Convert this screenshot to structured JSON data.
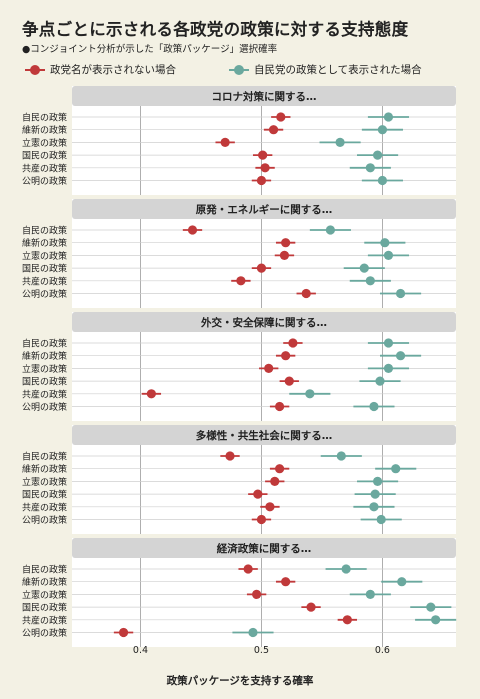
{
  "header": {
    "title": "争点ごとに示される各政党の政策に対する支持態度",
    "subtitle": "●コンジョイント分析が示した「政策パッケージ」選択確率"
  },
  "legend": {
    "series_a": "政党名が表示されない場合",
    "series_b": "自民党の政策として表示された場合"
  },
  "colors": {
    "series_a": "#c0393a",
    "series_b": "#6aa89e",
    "panel_bg": "#ffffff",
    "header_bg": "#d4d4d4",
    "page_bg": "#f3f1e4"
  },
  "chart_data": {
    "type": "scatter",
    "title": "争点ごとに示される各政党の政策に対する支持態度",
    "subtitle": "●コンジョイント分析が示した「政策パッケージ」選択確率",
    "xlabel": "政策パッケージを支持する確率",
    "xlim": [
      0.35,
      0.66
    ],
    "xticks": [
      0.4,
      0.5,
      0.6
    ],
    "xtick_labels": [
      "0.4",
      "0.5",
      "0.6"
    ],
    "grid": "vertical",
    "legend_position": "top",
    "series_names": [
      "政党名が表示されない場合",
      "自民党の政策として表示された場合"
    ],
    "panels": [
      {
        "title": "コロナ対策に関する…",
        "rows": [
          {
            "label": "自民の政策",
            "a": [
              0.516,
              0.508,
              0.524
            ],
            "b": [
              0.605,
              0.588,
              0.622
            ]
          },
          {
            "label": "維新の政策",
            "a": [
              0.51,
              0.502,
              0.518
            ],
            "b": [
              0.6,
              0.583,
              0.617
            ]
          },
          {
            "label": "立憲の政策",
            "a": [
              0.47,
              0.462,
              0.478
            ],
            "b": [
              0.565,
              0.548,
              0.582
            ]
          },
          {
            "label": "国民の政策",
            "a": [
              0.501,
              0.493,
              0.509
            ],
            "b": [
              0.596,
              0.579,
              0.613
            ]
          },
          {
            "label": "共産の政策",
            "a": [
              0.503,
              0.495,
              0.511
            ],
            "b": [
              0.59,
              0.573,
              0.607
            ]
          },
          {
            "label": "公明の政策",
            "a": [
              0.5,
              0.492,
              0.508
            ],
            "b": [
              0.6,
              0.583,
              0.617
            ]
          }
        ]
      },
      {
        "title": "原発・エネルギーに関する…",
        "rows": [
          {
            "label": "自民の政策",
            "a": [
              0.443,
              0.435,
              0.451
            ],
            "b": [
              0.557,
              0.54,
              0.574
            ]
          },
          {
            "label": "維新の政策",
            "a": [
              0.52,
              0.512,
              0.528
            ],
            "b": [
              0.602,
              0.585,
              0.619
            ]
          },
          {
            "label": "立憲の政策",
            "a": [
              0.519,
              0.511,
              0.527
            ],
            "b": [
              0.605,
              0.588,
              0.622
            ]
          },
          {
            "label": "国民の政策",
            "a": [
              0.5,
              0.492,
              0.508
            ],
            "b": [
              0.585,
              0.568,
              0.602
            ]
          },
          {
            "label": "共産の政策",
            "a": [
              0.483,
              0.475,
              0.491
            ],
            "b": [
              0.59,
              0.573,
              0.607
            ]
          },
          {
            "label": "公明の政策",
            "a": [
              0.537,
              0.529,
              0.545
            ],
            "b": [
              0.615,
              0.598,
              0.632
            ]
          }
        ]
      },
      {
        "title": "外交・安全保障に関する…",
        "rows": [
          {
            "label": "自民の政策",
            "a": [
              0.526,
              0.518,
              0.534
            ],
            "b": [
              0.605,
              0.588,
              0.622
            ]
          },
          {
            "label": "維新の政策",
            "a": [
              0.52,
              0.512,
              0.528
            ],
            "b": [
              0.615,
              0.598,
              0.632
            ]
          },
          {
            "label": "立憲の政策",
            "a": [
              0.506,
              0.498,
              0.514
            ],
            "b": [
              0.605,
              0.588,
              0.622
            ]
          },
          {
            "label": "国民の政策",
            "a": [
              0.523,
              0.515,
              0.531
            ],
            "b": [
              0.598,
              0.581,
              0.615
            ]
          },
          {
            "label": "共産の政策",
            "a": [
              0.409,
              0.401,
              0.417
            ],
            "b": [
              0.54,
              0.523,
              0.557
            ]
          },
          {
            "label": "公明の政策",
            "a": [
              0.515,
              0.507,
              0.523
            ],
            "b": [
              0.593,
              0.576,
              0.61
            ]
          }
        ]
      },
      {
        "title": "多様性・共生社会に関する…",
        "rows": [
          {
            "label": "自民の政策",
            "a": [
              0.474,
              0.466,
              0.482
            ],
            "b": [
              0.566,
              0.549,
              0.583
            ]
          },
          {
            "label": "維新の政策",
            "a": [
              0.515,
              0.507,
              0.523
            ],
            "b": [
              0.611,
              0.594,
              0.628
            ]
          },
          {
            "label": "立憲の政策",
            "a": [
              0.511,
              0.503,
              0.519
            ],
            "b": [
              0.596,
              0.579,
              0.613
            ]
          },
          {
            "label": "国民の政策",
            "a": [
              0.497,
              0.489,
              0.505
            ],
            "b": [
              0.594,
              0.577,
              0.611
            ]
          },
          {
            "label": "共産の政策",
            "a": [
              0.507,
              0.499,
              0.515
            ],
            "b": [
              0.593,
              0.576,
              0.61
            ]
          },
          {
            "label": "公明の政策",
            "a": [
              0.5,
              0.492,
              0.508
            ],
            "b": [
              0.599,
              0.582,
              0.616
            ]
          }
        ]
      },
      {
        "title": "経済政策に関する…",
        "rows": [
          {
            "label": "自民の政策",
            "a": [
              0.489,
              0.481,
              0.497
            ],
            "b": [
              0.57,
              0.553,
              0.587
            ]
          },
          {
            "label": "維新の政策",
            "a": [
              0.52,
              0.512,
              0.528
            ],
            "b": [
              0.616,
              0.599,
              0.633
            ]
          },
          {
            "label": "立憲の政策",
            "a": [
              0.496,
              0.488,
              0.504
            ],
            "b": [
              0.59,
              0.573,
              0.607
            ]
          },
          {
            "label": "国民の政策",
            "a": [
              0.541,
              0.533,
              0.549
            ],
            "b": [
              0.64,
              0.623,
              0.657
            ]
          },
          {
            "label": "共産の政策",
            "a": [
              0.571,
              0.563,
              0.579
            ],
            "b": [
              0.644,
              0.627,
              0.661
            ]
          },
          {
            "label": "公明の政策",
            "a": [
              0.386,
              0.378,
              0.394
            ],
            "b": [
              0.493,
              0.476,
              0.51
            ]
          }
        ]
      }
    ]
  }
}
